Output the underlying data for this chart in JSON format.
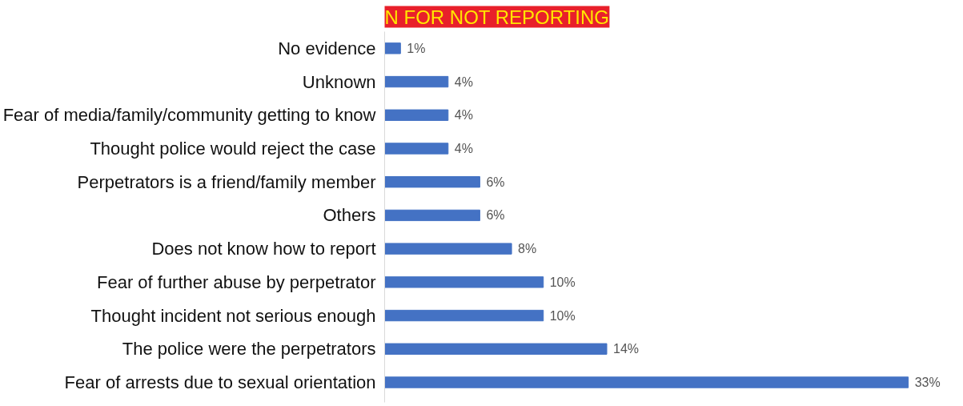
{
  "chart_data": {
    "type": "bar",
    "orientation": "horizontal",
    "title": "N FOR NOT REPORTING",
    "categories": [
      "No evidence",
      "Unknown",
      "Fear of media/family/community getting to know",
      "Thought police would reject the case",
      "Perpetrators is a friend/family member",
      "Others",
      "Does not know how to report",
      "Fear of further abuse by perpetrator",
      "Thought incident not serious enough",
      "The police were the perpetrators",
      "Fear of arrests due to sexual orientation"
    ],
    "values": [
      1,
      4,
      4,
      4,
      6,
      6,
      8,
      10,
      10,
      14,
      33
    ],
    "value_labels": [
      "1%",
      "4%",
      "4%",
      "4%",
      "6%",
      "6%",
      "8%",
      "10%",
      "10%",
      "14%",
      "33%"
    ],
    "color": "#4472c4",
    "grid": false
  }
}
